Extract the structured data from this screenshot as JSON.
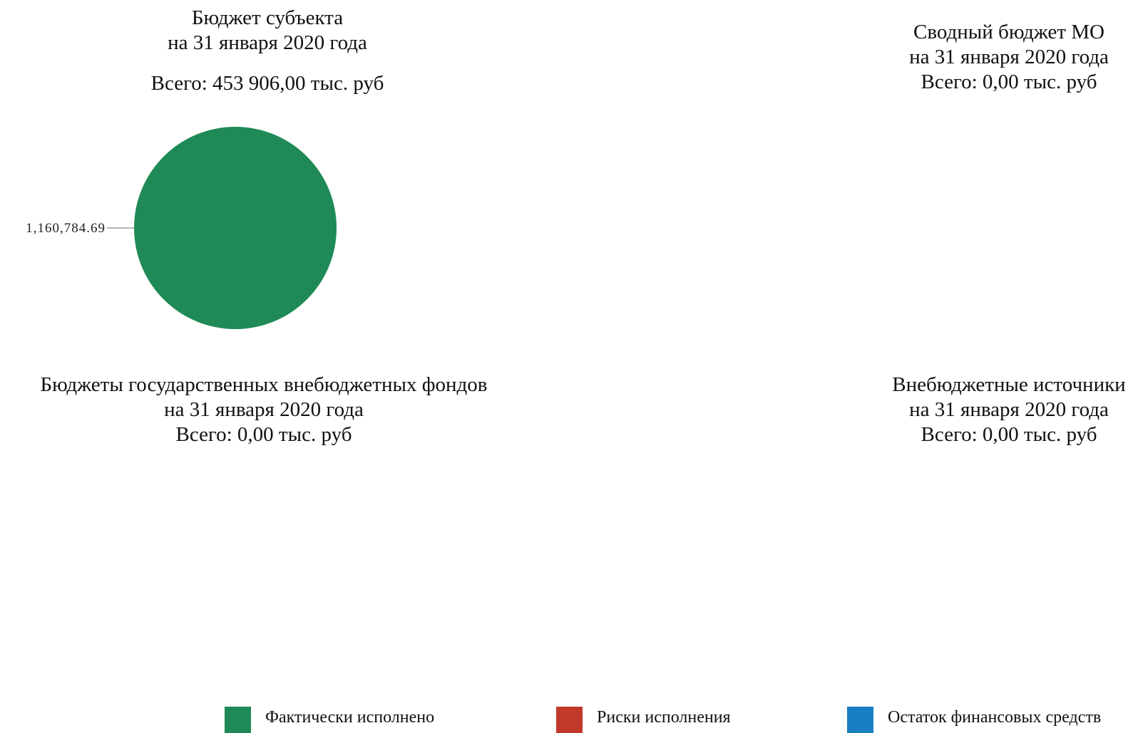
{
  "chart_data": [
    {
      "type": "pie",
      "title": [
        "Бюджет субъекта",
        "на 31 января 2020 года"
      ],
      "total_text": "Всего: 453 906,00 тыс. руб",
      "slices": [
        {
          "series": "Фактически исполнено",
          "value": 1160784.69,
          "label": "1,160,784.69"
        }
      ]
    },
    {
      "type": "pie",
      "title": [
        "Сводный бюджет МО",
        "на 31 января 2020 года"
      ],
      "total_text": "Всего: 0,00 тыс. руб",
      "slices": []
    },
    {
      "type": "pie",
      "title": [
        "Бюджеты государственных внебюджетных фондов",
        "на 31 января 2020 года"
      ],
      "total_text": "Всего: 0,00 тыс. руб",
      "slices": []
    },
    {
      "type": "pie",
      "title": [
        "Внебюджетные источники",
        "на 31 января 2020 года"
      ],
      "total_text": "Всего: 0,00 тыс. руб",
      "slices": []
    }
  ],
  "legend": {
    "placement": "bottom",
    "items": [
      {
        "label": "Фактически исполнено",
        "color": "#1f8a55"
      },
      {
        "label": "Риски исполнения",
        "color": "#c0392b"
      },
      {
        "label": "Остаток финансовых средств",
        "color": "#1a7ec2"
      }
    ]
  }
}
